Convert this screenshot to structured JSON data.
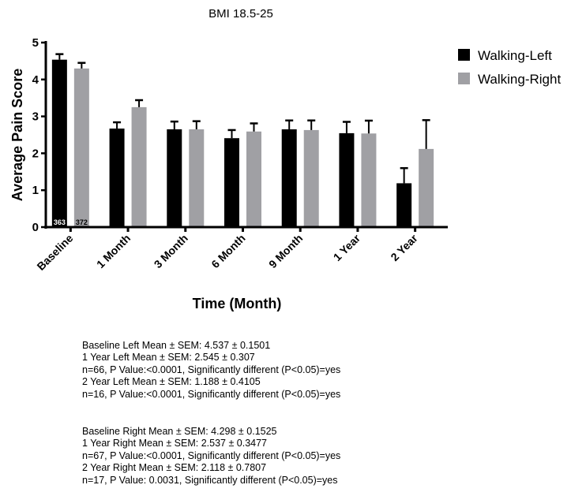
{
  "chart_data": {
    "type": "bar",
    "title": "BMI 18.5-25",
    "xlabel": "Time (Month)",
    "ylabel": "Average Pain Score",
    "ylim": [
      0,
      5
    ],
    "yticks": [
      "0",
      "1",
      "2",
      "3",
      "4",
      "5"
    ],
    "categories": [
      "Baseline",
      "1 Month",
      "3 Month",
      "6 Month",
      "9 Month",
      "1 Year",
      "2 Year"
    ],
    "series": [
      {
        "name": "Walking-Left",
        "color": "#000000",
        "values": [
          4.537,
          2.67,
          2.65,
          2.41,
          2.65,
          2.545,
          1.188
        ],
        "errors": [
          0.1501,
          0.17,
          0.21,
          0.22,
          0.24,
          0.307,
          0.4105
        ]
      },
      {
        "name": "Walking-Right",
        "color": "#a0a0a4",
        "values": [
          4.298,
          3.25,
          2.65,
          2.59,
          2.63,
          2.537,
          2.118
        ],
        "errors": [
          0.1525,
          0.19,
          0.22,
          0.22,
          0.26,
          0.3477,
          0.7807
        ]
      }
    ],
    "bar_annotations": [
      {
        "category": "Baseline",
        "series": "Walking-Left",
        "text": "363"
      },
      {
        "category": "Baseline",
        "series": "Walking-Right",
        "text": "372"
      }
    ],
    "legend_position": "top-right",
    "grid": false
  },
  "stats": {
    "left": [
      "Baseline Left Mean ± SEM: 4.537 ± 0.1501",
      "1 Year Left Mean ± SEM: 2.545 ± 0.307",
      "n=66, P Value:<0.0001, Significantly different (P<0.05)=yes",
      "2 Year Left Mean ± SEM: 1.188 ± 0.4105",
      "n=16, P Value:<0.0001, Significantly different (P<0.05)=yes"
    ],
    "right": [
      "Baseline Right Mean ± SEM: 4.298 ± 0.1525",
      "1 Year Right Mean ± SEM: 2.537 ± 0.3477",
      "n=67, P Value:<0.0001, Significantly different (P<0.05)=yes",
      "2 Year Right Mean ± SEM: 2.118 ± 0.7807",
      "n=17, P Value: 0.0031, Significantly different (P<0.05)=yes"
    ]
  }
}
